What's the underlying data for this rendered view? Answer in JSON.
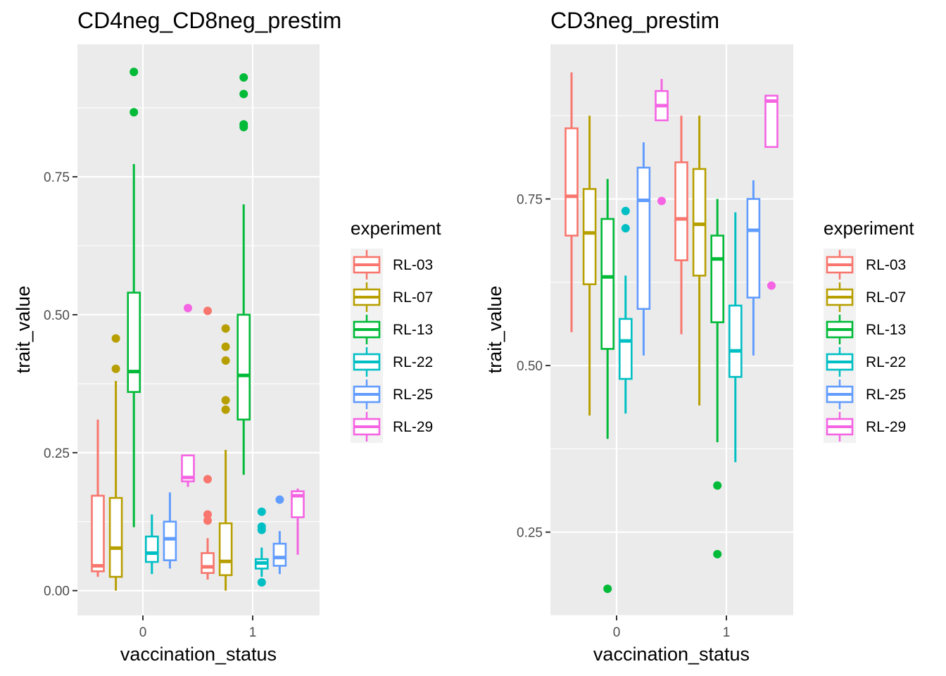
{
  "legend": {
    "title": "experiment",
    "entries": [
      {
        "label": "RL-03",
        "color": "#F8766D"
      },
      {
        "label": "RL-07",
        "color": "#B79F00"
      },
      {
        "label": "RL-13",
        "color": "#00BA38"
      },
      {
        "label": "RL-22",
        "color": "#00BFC4"
      },
      {
        "label": "RL-25",
        "color": "#619CFF"
      },
      {
        "label": "RL-29",
        "color": "#F564E3"
      }
    ]
  },
  "chart_data": [
    {
      "type": "boxplot",
      "title": "CD4neg_CD8neg_prestim",
      "xlabel": "vaccination_status",
      "ylabel": "trait_value",
      "categories": [
        "0",
        "1"
      ],
      "ylim": [
        -0.045,
        0.99
      ],
      "yticks": [
        0.0,
        0.25,
        0.5,
        0.75
      ],
      "ytick_labels": [
        "0.00",
        "0.25",
        "0.50",
        "0.75"
      ],
      "grid": true,
      "legend_position": "right",
      "series": [
        {
          "name": "RL-03",
          "boxes": [
            {
              "x": "0",
              "min": 0.025,
              "q1": 0.035,
              "median": 0.045,
              "q3": 0.172,
              "max": 0.31,
              "outliers": []
            },
            {
              "x": "1",
              "min": 0.02,
              "q1": 0.032,
              "median": 0.043,
              "q3": 0.068,
              "max": 0.095,
              "outliers": [
                0.507,
                0.202,
                0.138,
                0.127
              ]
            }
          ]
        },
        {
          "name": "RL-07",
          "boxes": [
            {
              "x": "0",
              "min": 0.0,
              "q1": 0.025,
              "median": 0.077,
              "q3": 0.168,
              "max": 0.38,
              "outliers": [
                0.457,
                0.402
              ]
            },
            {
              "x": "1",
              "min": 0.0,
              "q1": 0.028,
              "median": 0.053,
              "q3": 0.122,
              "max": 0.255,
              "outliers": [
                0.475,
                0.442,
                0.417,
                0.345,
                0.328
              ]
            }
          ]
        },
        {
          "name": "RL-13",
          "boxes": [
            {
              "x": "0",
              "min": 0.115,
              "q1": 0.36,
              "median": 0.397,
              "q3": 0.54,
              "max": 0.773,
              "outliers": [
                0.94,
                0.867
              ]
            },
            {
              "x": "1",
              "min": 0.21,
              "q1": 0.31,
              "median": 0.39,
              "q3": 0.5,
              "max": 0.7,
              "outliers": [
                0.93,
                0.9,
                0.845,
                0.84
              ]
            }
          ]
        },
        {
          "name": "RL-22",
          "boxes": [
            {
              "x": "0",
              "min": 0.03,
              "q1": 0.052,
              "median": 0.068,
              "q3": 0.098,
              "max": 0.138,
              "outliers": []
            },
            {
              "x": "1",
              "min": 0.025,
              "q1": 0.04,
              "median": 0.05,
              "q3": 0.057,
              "max": 0.078,
              "outliers": [
                0.143,
                0.116,
                0.11,
                0.015
              ]
            }
          ]
        },
        {
          "name": "RL-25",
          "boxes": [
            {
              "x": "0",
              "min": 0.04,
              "q1": 0.055,
              "median": 0.094,
              "q3": 0.125,
              "max": 0.178,
              "outliers": []
            },
            {
              "x": "1",
              "min": 0.03,
              "q1": 0.045,
              "median": 0.06,
              "q3": 0.085,
              "max": 0.108,
              "outliers": [
                0.165
              ]
            }
          ]
        },
        {
          "name": "RL-29",
          "boxes": [
            {
              "x": "0",
              "min": 0.188,
              "q1": 0.198,
              "median": 0.205,
              "q3": 0.245,
              "max": 0.245,
              "outliers": [
                0.512
              ]
            },
            {
              "x": "1",
              "min": 0.065,
              "q1": 0.133,
              "median": 0.172,
              "q3": 0.18,
              "max": 0.185,
              "outliers": []
            }
          ]
        }
      ]
    },
    {
      "type": "boxplot",
      "title": "CD3neg_prestim",
      "xlabel": "vaccination_status",
      "ylabel": "trait_value",
      "categories": [
        "0",
        "1"
      ],
      "ylim": [
        0.125,
        0.982
      ],
      "yticks": [
        0.25,
        0.5,
        0.75
      ],
      "ytick_labels": [
        "0.25",
        "0.50",
        "0.75"
      ],
      "grid": true,
      "legend_position": "right",
      "series": [
        {
          "name": "RL-03",
          "boxes": [
            {
              "x": "0",
              "min": 0.55,
              "q1": 0.695,
              "median": 0.754,
              "q3": 0.856,
              "max": 0.94,
              "outliers": []
            },
            {
              "x": "1",
              "min": 0.547,
              "q1": 0.658,
              "median": 0.72,
              "q3": 0.805,
              "max": 0.875,
              "outliers": []
            }
          ]
        },
        {
          "name": "RL-07",
          "boxes": [
            {
              "x": "0",
              "min": 0.425,
              "q1": 0.622,
              "median": 0.699,
              "q3": 0.765,
              "max": 0.875,
              "outliers": []
            },
            {
              "x": "1",
              "min": 0.44,
              "q1": 0.635,
              "median": 0.712,
              "q3": 0.795,
              "max": 0.875,
              "outliers": []
            }
          ]
        },
        {
          "name": "RL-13",
          "boxes": [
            {
              "x": "0",
              "min": 0.39,
              "q1": 0.525,
              "median": 0.633,
              "q3": 0.72,
              "max": 0.78,
              "outliers": [
                0.165
              ]
            },
            {
              "x": "1",
              "min": 0.385,
              "q1": 0.565,
              "median": 0.66,
              "q3": 0.695,
              "max": 0.75,
              "outliers": [
                0.32,
                0.217
              ]
            }
          ]
        },
        {
          "name": "RL-22",
          "boxes": [
            {
              "x": "0",
              "min": 0.428,
              "q1": 0.48,
              "median": 0.537,
              "q3": 0.57,
              "max": 0.635,
              "outliers": [
                0.732,
                0.706
              ]
            },
            {
              "x": "1",
              "min": 0.355,
              "q1": 0.483,
              "median": 0.522,
              "q3": 0.59,
              "max": 0.73,
              "outliers": []
            }
          ]
        },
        {
          "name": "RL-25",
          "boxes": [
            {
              "x": "0",
              "min": 0.515,
              "q1": 0.585,
              "median": 0.748,
              "q3": 0.797,
              "max": 0.835,
              "outliers": []
            },
            {
              "x": "1",
              "min": 0.515,
              "q1": 0.602,
              "median": 0.703,
              "q3": 0.75,
              "max": 0.778,
              "outliers": []
            }
          ]
        },
        {
          "name": "RL-29",
          "boxes": [
            {
              "x": "0",
              "min": 0.868,
              "q1": 0.868,
              "median": 0.89,
              "q3": 0.912,
              "max": 0.93,
              "outliers": [
                0.747
              ]
            },
            {
              "x": "1",
              "min": 0.828,
              "q1": 0.828,
              "median": 0.897,
              "q3": 0.905,
              "max": 0.905,
              "outliers": [
                0.62
              ]
            }
          ]
        }
      ]
    }
  ]
}
